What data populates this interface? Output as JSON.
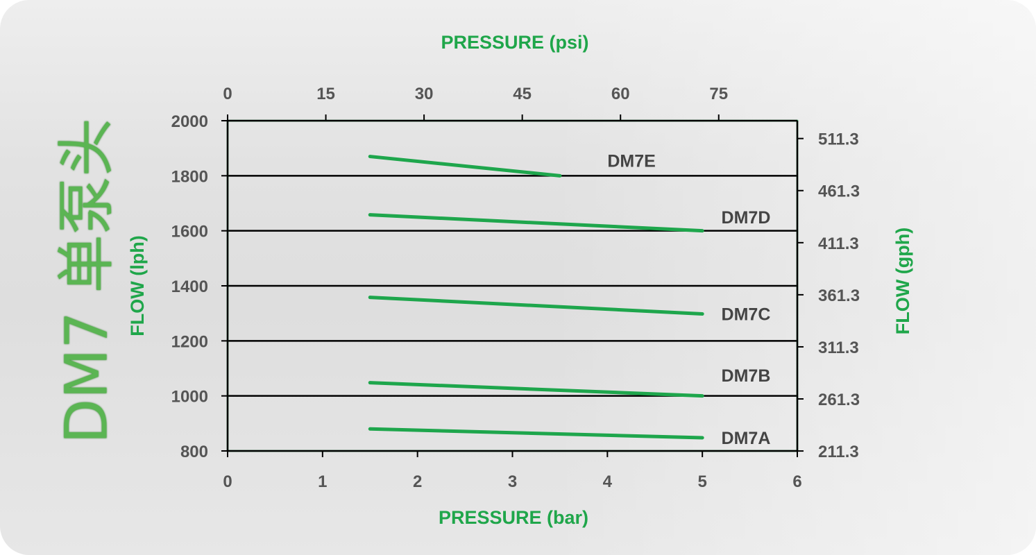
{
  "side_title": "DM7 单泵头",
  "chart_data": {
    "type": "line",
    "title": "",
    "xlabel": "PRESSURE (bar)",
    "x2label": "PRESSURE (psi)",
    "ylabel": "FLOW (lph)",
    "y2label": "FLOW (gph)",
    "xlim": [
      0,
      6
    ],
    "ylim": [
      800,
      2000
    ],
    "x_ticks": [
      0,
      1,
      2,
      3,
      4,
      5,
      6
    ],
    "y_ticks": [
      800,
      1000,
      1200,
      1400,
      1600,
      1800,
      2000
    ],
    "x2_ticks": [
      {
        "label": "0",
        "value": 0
      },
      {
        "label": "15",
        "value": 15
      },
      {
        "label": "30",
        "value": 30
      },
      {
        "label": "45",
        "value": 45
      },
      {
        "label": "60",
        "value": 60
      },
      {
        "label": "75",
        "value": 75
      }
    ],
    "x2_per_x": 14.5,
    "y2_ticks": [
      {
        "label": "211.3",
        "value": 211.3
      },
      {
        "label": "261.3",
        "value": 261.3
      },
      {
        "label": "311.3",
        "value": 311.3
      },
      {
        "label": "361.3",
        "value": 361.3
      },
      {
        "label": "411.3",
        "value": 411.3
      },
      {
        "label": "461.3",
        "value": 461.3
      },
      {
        "label": "511.3",
        "value": 511.3
      }
    ],
    "y2_per_y": 0.2642,
    "grid_y": [
      1000,
      1200,
      1400,
      1600,
      1800
    ],
    "series": [
      {
        "name": "DM7A",
        "x": [
          1.5,
          5
        ],
        "y": [
          880,
          848
        ],
        "label_at": [
          5.2,
          848
        ]
      },
      {
        "name": "DM7B",
        "x": [
          1.5,
          5
        ],
        "y": [
          1048,
          1000
        ],
        "label_at": [
          5.2,
          1075
        ]
      },
      {
        "name": "DM7C",
        "x": [
          1.5,
          5
        ],
        "y": [
          1358,
          1298
        ],
        "label_at": [
          5.2,
          1298
        ]
      },
      {
        "name": "DM7D",
        "x": [
          1.5,
          5
        ],
        "y": [
          1658,
          1600
        ],
        "label_at": [
          5.2,
          1650
        ]
      },
      {
        "name": "DM7E",
        "x": [
          1.5,
          3.5
        ],
        "y": [
          1870,
          1800
        ],
        "label_at": [
          4.0,
          1855
        ]
      }
    ],
    "colors": {
      "series": "#1ea64c",
      "plot_border": "#1ea64c",
      "grid": "#000000",
      "axis_title": "#1fa64a",
      "tick": "#555555",
      "label": "#444444"
    }
  }
}
